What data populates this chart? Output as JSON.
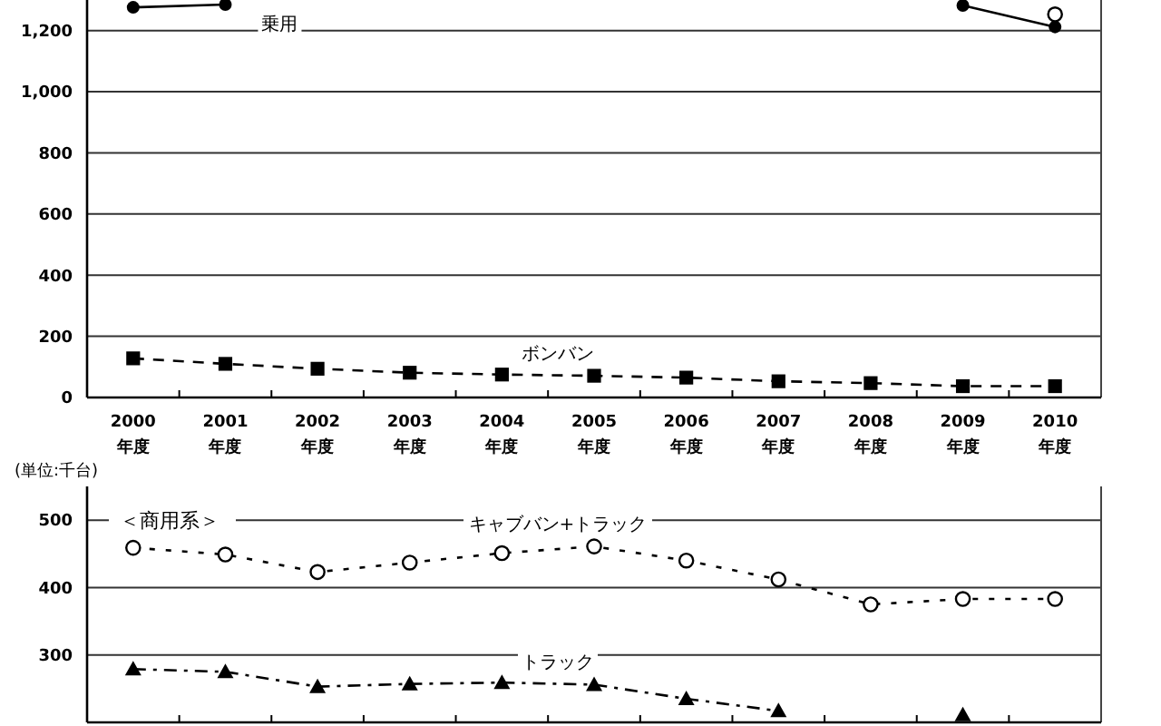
{
  "chart_data": [
    {
      "type": "line",
      "categories": [
        "2000\n年度",
        "2001\n年度",
        "2002\n年度",
        "2003\n年度",
        "2004\n年度",
        "2005\n年度",
        "2006\n年度",
        "2007\n年度",
        "2008\n年度",
        "2009\n年度",
        "2010\n年度"
      ],
      "series": [
        {
          "name": "乗用",
          "color": "#000000",
          "marker": "circle",
          "line_style": "solid",
          "values": [
            1276,
            1285,
            null,
            null,
            null,
            null,
            null,
            null,
            null,
            1282,
            1212
          ]
        },
        {
          "color": "#000000",
          "marker": "circle-open",
          "line_style": "solid",
          "values": [
            null,
            null,
            null,
            null,
            null,
            null,
            null,
            null,
            null,
            null,
            1253
          ]
        },
        {
          "name": "ボンバン",
          "color": "#000000",
          "marker": "square",
          "line_style": "dashed",
          "values": [
            128,
            110,
            94,
            81,
            75,
            71,
            65,
            53,
            47,
            37,
            37
          ]
        }
      ],
      "ylim": [
        0,
        1300
      ],
      "yticks": [
        0,
        200,
        400,
        600,
        800,
        {
          "value": 1000,
          "label": "1,000"
        },
        {
          "value": 1200,
          "label": "1,200"
        }
      ],
      "grid": "y"
    },
    {
      "type": "line",
      "categories": [
        null,
        null,
        null,
        null,
        null,
        null,
        null,
        null,
        null,
        null,
        null
      ],
      "annotations": [
        "(単位:千台)",
        "＜商用系＞"
      ],
      "series": [
        {
          "name": "キャブバン+トラック",
          "color": "#000000",
          "marker": "circle-open",
          "line_style": "dotted",
          "values": [
            459,
            449,
            423,
            437,
            451,
            461,
            440,
            412,
            375,
            383,
            383
          ]
        },
        {
          "name": "トラック",
          "color": "#000000",
          "marker": "triangle",
          "line_style": "dashdot",
          "values": [
            279,
            275,
            253,
            257,
            259,
            256,
            235,
            217,
            null,
            211,
            null
          ]
        }
      ],
      "ylim": [
        200,
        550
      ],
      "yticks": [
        300,
        400,
        500
      ],
      "grid": "y",
      "tick_labels": "y"
    }
  ]
}
